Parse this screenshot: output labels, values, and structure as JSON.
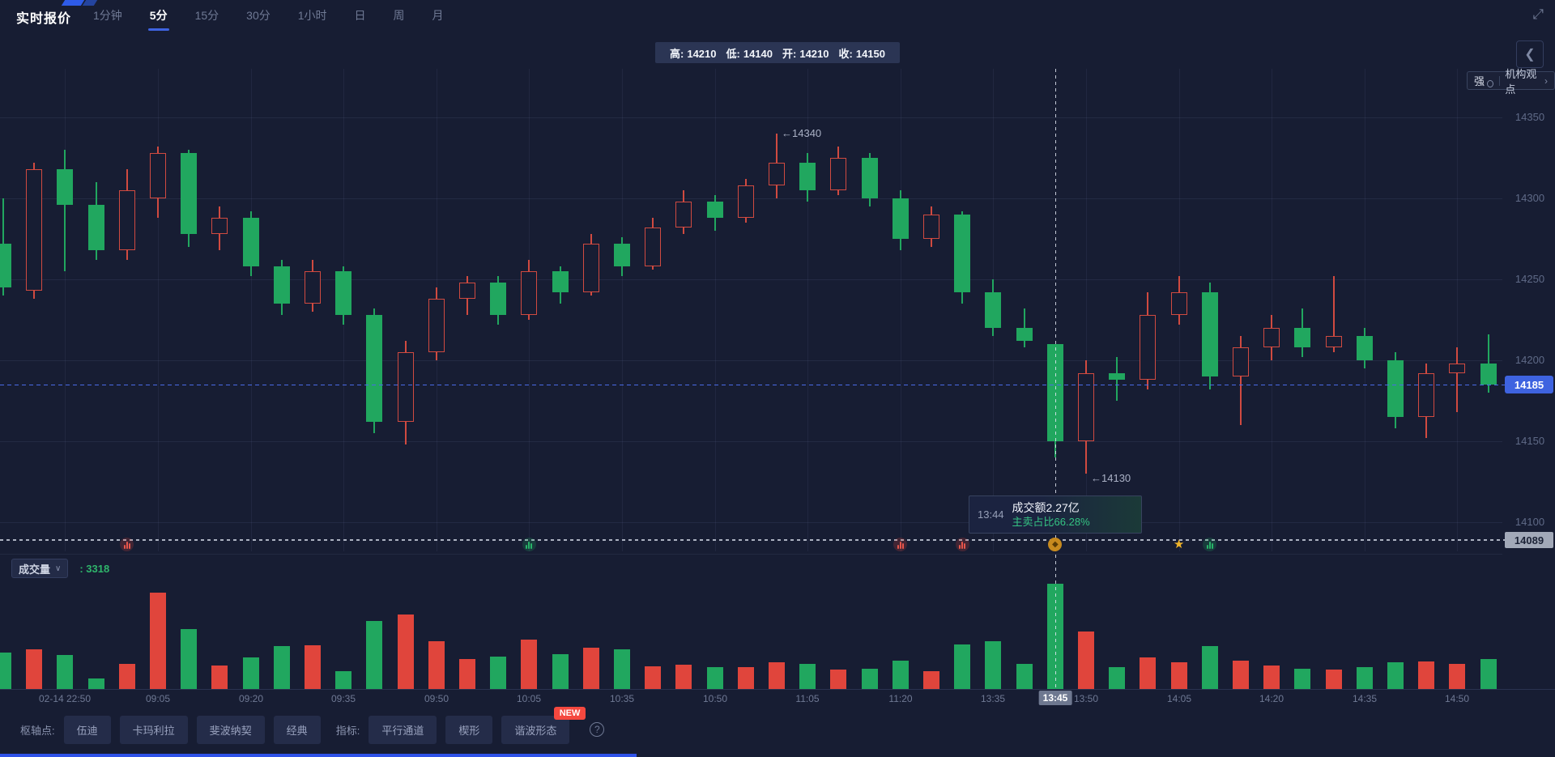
{
  "header": {
    "title": "实时报价",
    "tabs": [
      {
        "label": "1分钟",
        "active": false
      },
      {
        "label": "5分",
        "active": true
      },
      {
        "label": "15分",
        "active": false
      },
      {
        "label": "30分",
        "active": false
      },
      {
        "label": "1小时",
        "active": false
      },
      {
        "label": "日",
        "active": false
      },
      {
        "label": "周",
        "active": false
      },
      {
        "label": "月",
        "active": false
      }
    ],
    "expand_icon": "⤢"
  },
  "ohlc_bar": {
    "items": [
      {
        "label": "高:",
        "value": "14210"
      },
      {
        "label": "低:",
        "value": "14140"
      },
      {
        "label": "开:",
        "value": "14210"
      },
      {
        "label": "收:",
        "value": "14150"
      }
    ]
  },
  "top_right": {
    "collapse_icon": "❮",
    "strength_badge": "强",
    "org_view_label": "机构观点",
    "chevron": "›"
  },
  "tooltip": {
    "time": "13:44",
    "line1": "成交额2.27亿",
    "line2": "主卖占比66.28%"
  },
  "volume_header": {
    "label": "成交量",
    "chevron": "∨",
    "value": ": 3318"
  },
  "footer": {
    "pivot_label": "枢轴点:",
    "pivot_buttons": [
      "伍迪",
      "卡玛利拉",
      "斐波纳契",
      "经典"
    ],
    "indicator_label": "指标:",
    "indicator_buttons": [
      {
        "label": "平行通道"
      },
      {
        "label": "楔形"
      },
      {
        "label": "谐波形态",
        "badge": "NEW"
      }
    ],
    "help_icon": "?"
  },
  "colors": {
    "background": "#171d33",
    "up_red": "#d04a40",
    "down_green": "#21a75f",
    "volume_up_red": "#e0453c",
    "accent_blue": "#3e63e0",
    "current_price_badge": "#3e63e0",
    "reference_badge": "#a2a9b8",
    "tooltip_green_text": "#35c383",
    "new_badge_red": "#f5483f"
  },
  "chart_data": {
    "type": "candlestick",
    "interval": "5min",
    "price_ticks": [
      14350,
      14300,
      14250,
      14200,
      14150,
      14100
    ],
    "current_price": 14185,
    "reference_price": 14089,
    "session_high_annotation": {
      "index": 25,
      "price": 14340,
      "text": "←14340"
    },
    "session_low_annotation": {
      "index": 35,
      "price": 14130,
      "text": "←14130"
    },
    "crosshair": {
      "index": 34,
      "time_label": "13:45"
    },
    "hovered": {
      "time": "13:44",
      "open": 14210,
      "high": 14210,
      "low": 14140,
      "close": 14150,
      "volume": 3318,
      "turnover": "2.27亿",
      "main_sell_ratio": "66.28%"
    },
    "x_labels": [
      {
        "index": 2,
        "label": "02-14 22:50"
      },
      {
        "index": 5,
        "label": "09:05"
      },
      {
        "index": 8,
        "label": "09:20"
      },
      {
        "index": 11,
        "label": "09:35"
      },
      {
        "index": 14,
        "label": "09:50"
      },
      {
        "index": 17,
        "label": "10:05"
      },
      {
        "index": 20,
        "label": "10:35"
      },
      {
        "index": 23,
        "label": "10:50"
      },
      {
        "index": 26,
        "label": "11:05"
      },
      {
        "index": 29,
        "label": "11:20"
      },
      {
        "index": 32,
        "label": "13:35"
      },
      {
        "index": 34,
        "label": "13:45",
        "highlight": true
      },
      {
        "index": 35,
        "label": "13:50"
      },
      {
        "index": 38,
        "label": "14:05"
      },
      {
        "index": 41,
        "label": "14:20"
      },
      {
        "index": 44,
        "label": "14:35"
      },
      {
        "index": 47,
        "label": "14:50"
      }
    ],
    "markers": [
      {
        "index": 4,
        "type": "volume-red"
      },
      {
        "index": 17,
        "type": "volume-green"
      },
      {
        "index": 29,
        "type": "volume-red"
      },
      {
        "index": 31,
        "type": "volume-red"
      },
      {
        "index": 34,
        "type": "gold-event"
      },
      {
        "index": 38,
        "type": "gold-star"
      },
      {
        "index": 39,
        "type": "volume-green"
      }
    ],
    "candles": [
      [
        "22:40",
        14272,
        14300,
        14240,
        14245,
        1150
      ],
      [
        "22:45",
        14243,
        14322,
        14238,
        14318,
        1250
      ],
      [
        "22:50",
        14318,
        14330,
        14255,
        14296,
        1080
      ],
      [
        "22:55",
        14296,
        14310,
        14262,
        14268,
        320
      ],
      [
        "23:00",
        14268,
        14318,
        14262,
        14305,
        780
      ],
      [
        "09:05",
        14300,
        14332,
        14288,
        14328,
        3050
      ],
      [
        "09:10",
        14328,
        14330,
        14270,
        14278,
        1900
      ],
      [
        "09:15",
        14278,
        14295,
        14268,
        14288,
        750
      ],
      [
        "09:20",
        14288,
        14292,
        14252,
        14258,
        1000
      ],
      [
        "09:25",
        14258,
        14262,
        14228,
        14235,
        1350
      ],
      [
        "09:30",
        14235,
        14262,
        14230,
        14255,
        1380
      ],
      [
        "09:35",
        14255,
        14258,
        14222,
        14228,
        560
      ],
      [
        "09:40",
        14228,
        14232,
        14155,
        14162,
        2150
      ],
      [
        "09:45",
        14162,
        14212,
        14148,
        14205,
        2350
      ],
      [
        "09:50",
        14205,
        14245,
        14200,
        14238,
        1500
      ],
      [
        "09:55",
        14238,
        14252,
        14228,
        14248,
        950
      ],
      [
        "10:00",
        14248,
        14252,
        14222,
        14228,
        1020
      ],
      [
        "10:05",
        14228,
        14262,
        14225,
        14255,
        1550
      ],
      [
        "10:10",
        14255,
        14258,
        14235,
        14242,
        1100
      ],
      [
        "10:15",
        14242,
        14278,
        14240,
        14272,
        1300
      ],
      [
        "10:35",
        14272,
        14276,
        14252,
        14258,
        1250
      ],
      [
        "10:40",
        14258,
        14288,
        14256,
        14282,
        720
      ],
      [
        "10:45",
        14282,
        14305,
        14278,
        14298,
        760
      ],
      [
        "10:50",
        14298,
        14302,
        14280,
        14288,
        700
      ],
      [
        "10:55",
        14288,
        14312,
        14285,
        14308,
        700
      ],
      [
        "11:00",
        14308,
        14340,
        14300,
        14322,
        850
      ],
      [
        "11:05",
        14322,
        14328,
        14298,
        14305,
        800
      ],
      [
        "11:10",
        14305,
        14332,
        14302,
        14325,
        600
      ],
      [
        "11:15",
        14325,
        14328,
        14295,
        14300,
        650
      ],
      [
        "11:20",
        14300,
        14305,
        14268,
        14275,
        900
      ],
      [
        "11:25",
        14275,
        14295,
        14270,
        14290,
        550
      ],
      [
        "11:30",
        14290,
        14292,
        14235,
        14242,
        1400
      ],
      [
        "13:35",
        14242,
        14250,
        14215,
        14220,
        1500
      ],
      [
        "13:40",
        14220,
        14232,
        14208,
        14212,
        800
      ],
      [
        "13:45",
        14210,
        14210,
        14140,
        14150,
        3318
      ],
      [
        "13:50",
        14150,
        14200,
        14130,
        14192,
        1800
      ],
      [
        "13:55",
        14192,
        14202,
        14175,
        14188,
        700
      ],
      [
        "14:00",
        14188,
        14242,
        14182,
        14228,
        1000
      ],
      [
        "14:05",
        14228,
        14252,
        14222,
        14242,
        850
      ],
      [
        "14:10",
        14242,
        14248,
        14182,
        14190,
        1350
      ],
      [
        "14:15",
        14190,
        14215,
        14160,
        14208,
        900
      ],
      [
        "14:20",
        14208,
        14228,
        14200,
        14220,
        750
      ],
      [
        "14:25",
        14220,
        14232,
        14202,
        14208,
        650
      ],
      [
        "14:30",
        14208,
        14252,
        14205,
        14215,
        600
      ],
      [
        "14:35",
        14215,
        14220,
        14195,
        14200,
        700
      ],
      [
        "14:40",
        14200,
        14205,
        14158,
        14165,
        850
      ],
      [
        "14:45",
        14165,
        14198,
        14152,
        14192,
        880
      ],
      [
        "14:50",
        14192,
        14208,
        14168,
        14198,
        800
      ],
      [
        "14:55",
        14198,
        14216,
        14180,
        14185,
        950
      ]
    ]
  }
}
